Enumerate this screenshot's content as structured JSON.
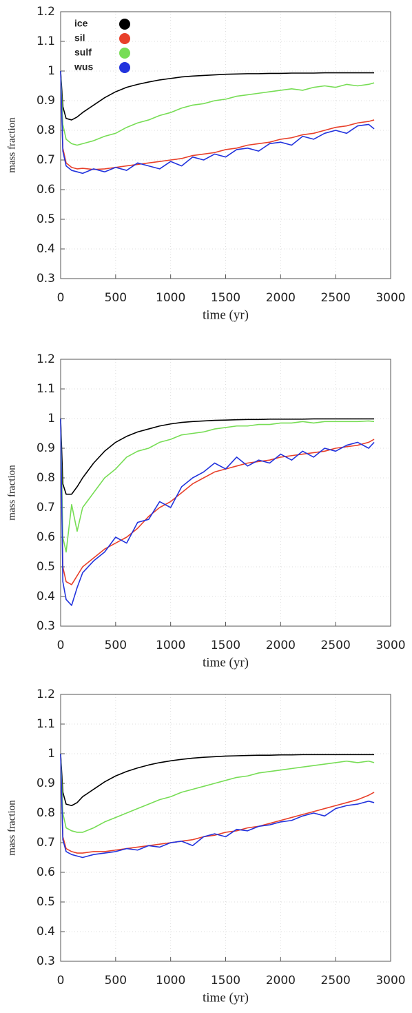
{
  "chart_data": [
    {
      "type": "line",
      "xlabel": "time (yr)",
      "ylabel": "mass fraction",
      "x": [
        0,
        20,
        50,
        100,
        150,
        200,
        300,
        400,
        500,
        600,
        700,
        800,
        900,
        1000,
        1100,
        1200,
        1300,
        1400,
        1500,
        1600,
        1700,
        1800,
        1900,
        2000,
        2100,
        2200,
        2300,
        2400,
        2500,
        2600,
        2700,
        2800,
        2850
      ],
      "xlim": [
        0,
        3000
      ],
      "xticks": [
        0,
        500,
        1000,
        1500,
        2000,
        2500,
        3000
      ],
      "ylim": [
        0.3,
        1.2
      ],
      "yticks": [
        0.3,
        0.4,
        0.5,
        0.6,
        0.7,
        0.8,
        0.9,
        1,
        1.1,
        1.2
      ],
      "grid": true,
      "legend": "upper left",
      "series": [
        {
          "name": "ice",
          "color": "#000000",
          "values": [
            1.0,
            0.88,
            0.84,
            0.835,
            0.845,
            0.86,
            0.885,
            0.91,
            0.93,
            0.945,
            0.955,
            0.963,
            0.97,
            0.975,
            0.98,
            0.983,
            0.985,
            0.987,
            0.989,
            0.99,
            0.991,
            0.991,
            0.992,
            0.992,
            0.993,
            0.993,
            0.993,
            0.994,
            0.994,
            0.994,
            0.994,
            0.994,
            0.994
          ]
        },
        {
          "name": "sil",
          "color": "#e8402a",
          "values": [
            1.0,
            0.74,
            0.69,
            0.675,
            0.67,
            0.672,
            0.668,
            0.67,
            0.675,
            0.68,
            0.685,
            0.69,
            0.695,
            0.7,
            0.705,
            0.715,
            0.72,
            0.725,
            0.735,
            0.74,
            0.75,
            0.755,
            0.76,
            0.77,
            0.775,
            0.785,
            0.79,
            0.8,
            0.81,
            0.815,
            0.825,
            0.83,
            0.835
          ]
        },
        {
          "name": "sulf",
          "color": "#77dd55",
          "values": [
            1.0,
            0.82,
            0.77,
            0.755,
            0.75,
            0.755,
            0.765,
            0.78,
            0.79,
            0.81,
            0.825,
            0.835,
            0.85,
            0.86,
            0.875,
            0.885,
            0.89,
            0.9,
            0.905,
            0.915,
            0.92,
            0.925,
            0.93,
            0.935,
            0.94,
            0.935,
            0.945,
            0.95,
            0.945,
            0.955,
            0.95,
            0.955,
            0.96
          ]
        },
        {
          "name": "wus",
          "color": "#2233dd",
          "values": [
            1.0,
            0.73,
            0.68,
            0.665,
            0.66,
            0.655,
            0.67,
            0.66,
            0.675,
            0.665,
            0.69,
            0.68,
            0.67,
            0.695,
            0.68,
            0.71,
            0.7,
            0.72,
            0.71,
            0.735,
            0.74,
            0.73,
            0.755,
            0.76,
            0.75,
            0.78,
            0.77,
            0.79,
            0.8,
            0.79,
            0.815,
            0.82,
            0.805
          ]
        }
      ]
    },
    {
      "type": "line",
      "xlabel": "time (yr)",
      "ylabel": "mass fraction",
      "x": [
        0,
        20,
        50,
        100,
        150,
        200,
        300,
        400,
        500,
        600,
        700,
        800,
        900,
        1000,
        1100,
        1200,
        1300,
        1400,
        1500,
        1600,
        1700,
        1800,
        1900,
        2000,
        2100,
        2200,
        2300,
        2400,
        2500,
        2600,
        2700,
        2800,
        2850
      ],
      "xlim": [
        0,
        3000
      ],
      "xticks": [
        0,
        500,
        1000,
        1500,
        2000,
        2500,
        3000
      ],
      "ylim": [
        0.3,
        1.2
      ],
      "yticks": [
        0.3,
        0.4,
        0.5,
        0.6,
        0.7,
        0.8,
        0.9,
        1,
        1.1,
        1.2
      ],
      "grid": true,
      "series": [
        {
          "color": "#000000",
          "values": [
            1.0,
            0.78,
            0.745,
            0.745,
            0.77,
            0.8,
            0.85,
            0.89,
            0.92,
            0.94,
            0.955,
            0.965,
            0.975,
            0.982,
            0.987,
            0.99,
            0.992,
            0.994,
            0.995,
            0.996,
            0.997,
            0.997,
            0.998,
            0.998,
            0.998,
            0.998,
            0.999,
            0.999,
            0.999,
            0.999,
            0.999,
            0.999,
            0.999
          ]
        },
        {
          "color": "#e8402a",
          "values": [
            1.0,
            0.5,
            0.45,
            0.44,
            0.47,
            0.5,
            0.53,
            0.56,
            0.58,
            0.6,
            0.63,
            0.67,
            0.7,
            0.72,
            0.75,
            0.78,
            0.8,
            0.82,
            0.83,
            0.84,
            0.85,
            0.855,
            0.86,
            0.87,
            0.875,
            0.88,
            0.885,
            0.89,
            0.9,
            0.905,
            0.91,
            0.92,
            0.93
          ]
        },
        {
          "color": "#77dd55",
          "values": [
            1.0,
            0.6,
            0.55,
            0.71,
            0.62,
            0.7,
            0.75,
            0.8,
            0.83,
            0.87,
            0.89,
            0.9,
            0.92,
            0.93,
            0.945,
            0.95,
            0.955,
            0.965,
            0.97,
            0.975,
            0.975,
            0.98,
            0.98,
            0.985,
            0.985,
            0.99,
            0.985,
            0.99,
            0.99,
            0.99,
            0.99,
            0.992,
            0.99
          ]
        },
        {
          "color": "#2233dd",
          "values": [
            1.0,
            0.45,
            0.39,
            0.37,
            0.43,
            0.48,
            0.52,
            0.55,
            0.6,
            0.58,
            0.65,
            0.66,
            0.72,
            0.7,
            0.77,
            0.8,
            0.82,
            0.85,
            0.83,
            0.87,
            0.84,
            0.86,
            0.85,
            0.88,
            0.86,
            0.89,
            0.87,
            0.9,
            0.89,
            0.91,
            0.92,
            0.9,
            0.92
          ]
        }
      ]
    },
    {
      "type": "line",
      "xlabel": "time (yr)",
      "ylabel": "mass fraction",
      "x": [
        0,
        20,
        50,
        100,
        150,
        200,
        300,
        400,
        500,
        600,
        700,
        800,
        900,
        1000,
        1100,
        1200,
        1300,
        1400,
        1500,
        1600,
        1700,
        1800,
        1900,
        2000,
        2100,
        2200,
        2300,
        2400,
        2500,
        2600,
        2700,
        2800,
        2850
      ],
      "xlim": [
        0,
        3000
      ],
      "xticks": [
        0,
        500,
        1000,
        1500,
        2000,
        2500,
        3000
      ],
      "ylim": [
        0.3,
        1.2
      ],
      "yticks": [
        0.3,
        0.4,
        0.5,
        0.6,
        0.7,
        0.8,
        0.9,
        1,
        1.1,
        1.2
      ],
      "grid": true,
      "series": [
        {
          "color": "#000000",
          "values": [
            1.0,
            0.87,
            0.83,
            0.825,
            0.835,
            0.855,
            0.88,
            0.905,
            0.925,
            0.94,
            0.952,
            0.962,
            0.97,
            0.976,
            0.981,
            0.985,
            0.988,
            0.99,
            0.992,
            0.993,
            0.994,
            0.995,
            0.995,
            0.996,
            0.996,
            0.997,
            0.997,
            0.997,
            0.997,
            0.997,
            0.997,
            0.997,
            0.997
          ]
        },
        {
          "color": "#e8402a",
          "values": [
            1.0,
            0.72,
            0.68,
            0.67,
            0.665,
            0.665,
            0.67,
            0.67,
            0.675,
            0.68,
            0.685,
            0.69,
            0.695,
            0.7,
            0.705,
            0.71,
            0.72,
            0.725,
            0.735,
            0.74,
            0.75,
            0.755,
            0.765,
            0.775,
            0.785,
            0.795,
            0.805,
            0.815,
            0.825,
            0.835,
            0.845,
            0.86,
            0.87
          ]
        },
        {
          "color": "#77dd55",
          "values": [
            1.0,
            0.8,
            0.75,
            0.74,
            0.735,
            0.735,
            0.75,
            0.77,
            0.785,
            0.8,
            0.815,
            0.83,
            0.845,
            0.855,
            0.87,
            0.88,
            0.89,
            0.9,
            0.91,
            0.92,
            0.925,
            0.935,
            0.94,
            0.945,
            0.95,
            0.955,
            0.96,
            0.965,
            0.97,
            0.975,
            0.97,
            0.975,
            0.97
          ]
        },
        {
          "color": "#2233dd",
          "values": [
            1.0,
            0.71,
            0.67,
            0.66,
            0.655,
            0.65,
            0.66,
            0.665,
            0.67,
            0.68,
            0.675,
            0.69,
            0.685,
            0.7,
            0.705,
            0.69,
            0.72,
            0.73,
            0.72,
            0.745,
            0.74,
            0.755,
            0.76,
            0.77,
            0.775,
            0.79,
            0.8,
            0.79,
            0.815,
            0.825,
            0.83,
            0.84,
            0.835
          ]
        }
      ]
    }
  ]
}
